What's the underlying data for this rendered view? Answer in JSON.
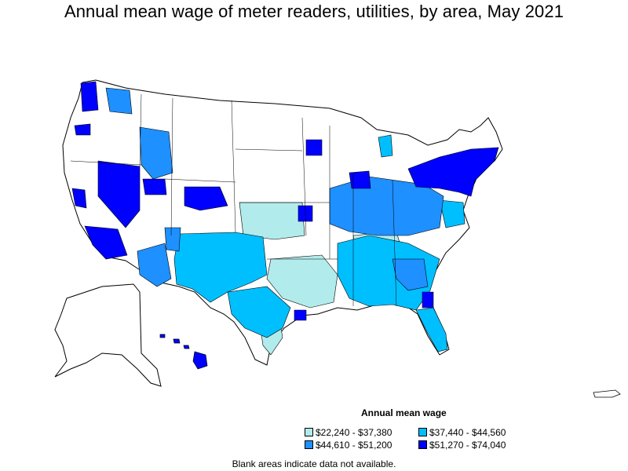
{
  "title": "Annual mean wage of meter readers, utilities, by area, May 2021",
  "legend": {
    "title": "Annual mean wage",
    "items": [
      {
        "label": "$22,240 - $37,380",
        "color": "#b2ebeb"
      },
      {
        "label": "$37,440 - $44,560",
        "color": "#00bfff"
      },
      {
        "label": "$44,610 - $51,200",
        "color": "#1e90ff"
      },
      {
        "label": "$51,270 - $74,040",
        "color": "#0000ff"
      }
    ]
  },
  "note": "Blank areas indicate data not available."
}
